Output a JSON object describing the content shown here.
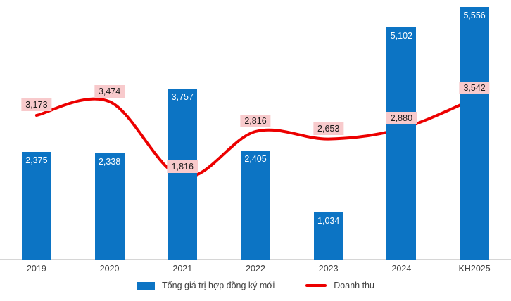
{
  "chart_data": {
    "type": "combo",
    "categories": [
      "2019",
      "2020",
      "2021",
      "2022",
      "2023",
      "2024",
      "KH2025"
    ],
    "series": [
      {
        "name": "Tổng giá trị hợp đồng ký mới",
        "kind": "bar",
        "color": "#0C74C4",
        "label_style": "white-inside-top",
        "values": [
          2375,
          2338,
          3757,
          2405,
          1034,
          5102,
          5556
        ],
        "value_labels": [
          "2,375",
          "2,338",
          "3,757",
          "2,405",
          "1,034",
          "5,102",
          "5,556"
        ]
      },
      {
        "name": "Doanh thu",
        "kind": "line",
        "color": "#EC0000",
        "label_bg": "#F8CACC",
        "label_style": "pink-box-above-point",
        "values": [
          3173,
          3474,
          1816,
          2816,
          2653,
          2880,
          3542
        ],
        "value_labels": [
          "3,173",
          "3,474",
          "1,816",
          "2,816",
          "2,653",
          "2,880",
          "3,542"
        ]
      }
    ],
    "title": "",
    "xlabel": "",
    "ylabel": "",
    "ylim": [
      0,
      5750
    ],
    "grid": false,
    "axis_line_color": "#D6D6D6",
    "legend_position": "bottom-center",
    "line_smooth": true
  }
}
